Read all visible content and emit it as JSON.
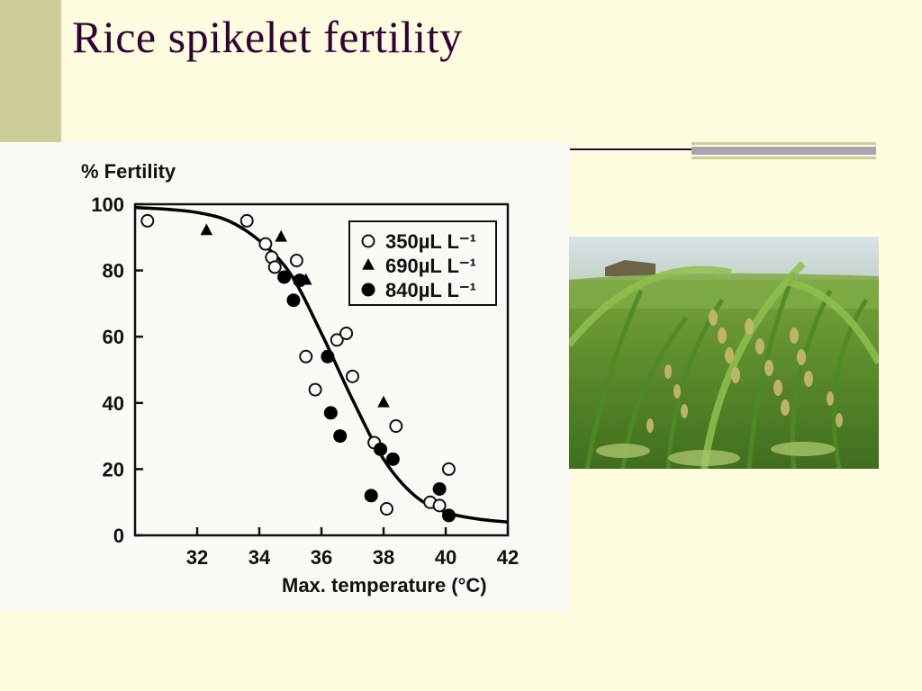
{
  "slide": {
    "title": "Rice spikelet fertility"
  },
  "colors": {
    "background": "#fffde0",
    "accent_bar": "#cccc99",
    "title_text": "#330033",
    "rule_gray": "#a6a6b2"
  },
  "photo": {
    "subject": "rice panicles in a paddy field",
    "icon": "rice-field-photo"
  },
  "chart_data": {
    "type": "scatter",
    "ylabel": "% Fertility",
    "xlabel": "Max. temperature (°C)",
    "xlim": [
      30,
      42
    ],
    "ylim": [
      0,
      100
    ],
    "xticks": [
      32,
      34,
      36,
      38,
      40,
      42
    ],
    "yticks": [
      0,
      20,
      40,
      60,
      80,
      100
    ],
    "grid": false,
    "legend_position": "top-right",
    "series": [
      {
        "name": "350µL L⁻¹",
        "marker": "open-circle",
        "points": [
          [
            30.4,
            95
          ],
          [
            33.6,
            95
          ],
          [
            34.2,
            88
          ],
          [
            34.4,
            84
          ],
          [
            34.5,
            81
          ],
          [
            35.2,
            83
          ],
          [
            35.5,
            54
          ],
          [
            35.8,
            44
          ],
          [
            36.5,
            59
          ],
          [
            36.8,
            61
          ],
          [
            37.0,
            48
          ],
          [
            37.7,
            28
          ],
          [
            38.1,
            8
          ],
          [
            38.4,
            33
          ],
          [
            39.5,
            10
          ],
          [
            39.8,
            9
          ],
          [
            40.1,
            20
          ]
        ]
      },
      {
        "name": "690µL L⁻¹",
        "marker": "filled-triangle",
        "points": [
          [
            32.3,
            92
          ],
          [
            34.7,
            90
          ],
          [
            35.5,
            77
          ],
          [
            38.0,
            40
          ]
        ]
      },
      {
        "name": "840µL L⁻¹",
        "marker": "filled-circle",
        "points": [
          [
            34.8,
            78
          ],
          [
            35.1,
            71
          ],
          [
            35.3,
            77
          ],
          [
            36.2,
            54
          ],
          [
            36.3,
            37
          ],
          [
            36.6,
            30
          ],
          [
            37.6,
            12
          ],
          [
            37.9,
            26
          ],
          [
            38.3,
            23
          ],
          [
            39.8,
            14
          ],
          [
            40.1,
            6
          ]
        ]
      }
    ],
    "fit_curve": {
      "style": "solid-black",
      "points": [
        [
          30,
          99
        ],
        [
          31,
          98.5
        ],
        [
          32,
          97.5
        ],
        [
          33,
          95
        ],
        [
          34,
          89
        ],
        [
          35,
          79
        ],
        [
          36,
          61
        ],
        [
          37,
          41
        ],
        [
          38,
          23
        ],
        [
          39,
          12
        ],
        [
          40,
          7
        ],
        [
          41,
          5
        ],
        [
          42,
          4
        ]
      ]
    }
  }
}
